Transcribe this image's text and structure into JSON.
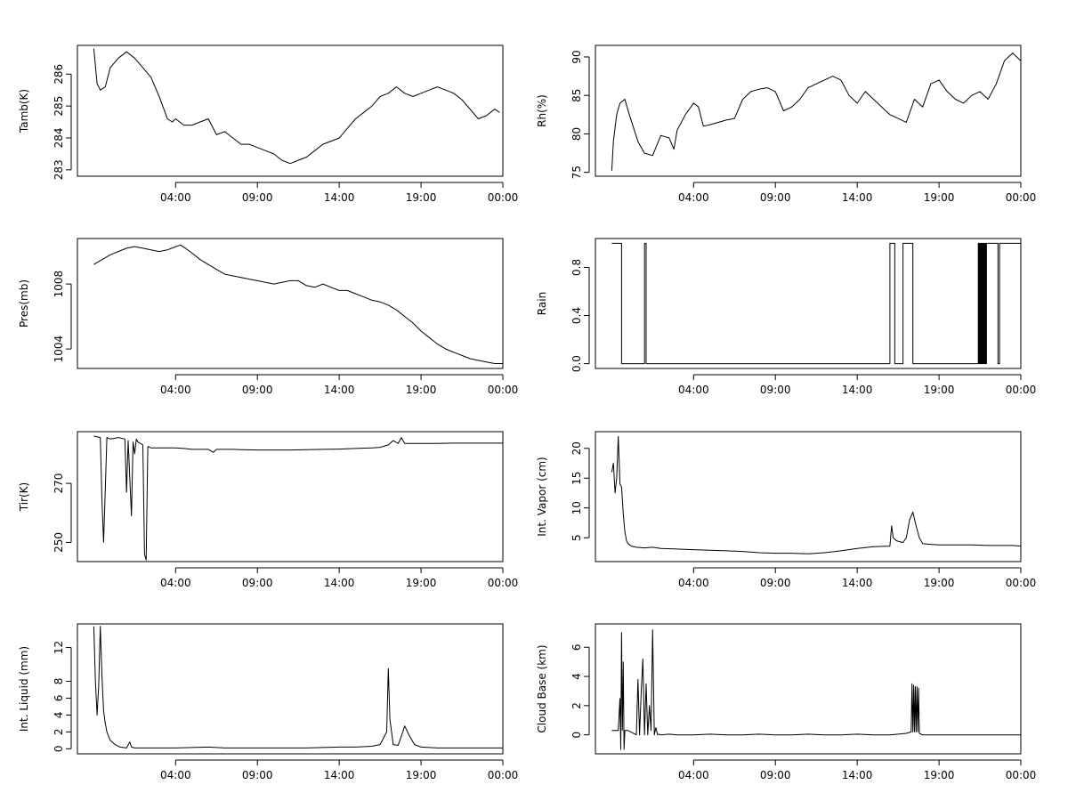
{
  "chart_data": [
    {
      "type": "line",
      "ylabel": "Tamb(K)",
      "xlim": [
        -2,
        24
      ],
      "ylim": [
        282.8,
        286.9
      ],
      "x_ticks": [
        4,
        9,
        14,
        19,
        24
      ],
      "x_tick_labels": [
        "04:00",
        "09:00",
        "14:00",
        "19:00",
        "00:00"
      ],
      "y_ticks": [
        283,
        284,
        285,
        286
      ],
      "y_tick_labels": [
        "283",
        "284",
        "285",
        "286"
      ],
      "series": [
        {
          "x": [
            -1,
            -0.8,
            -0.6,
            -0.3,
            0,
            0.5,
            1,
            1.5,
            2,
            2.5,
            3,
            3.5,
            3.8,
            4,
            4.5,
            5,
            5.5,
            6,
            6.5,
            7,
            7.5,
            8,
            8.5,
            9,
            9.5,
            10,
            10.5,
            11,
            11.5,
            12,
            12.5,
            13,
            13.5,
            14,
            14.5,
            15,
            15.5,
            16,
            16.5,
            17,
            17.5,
            18,
            18.5,
            19,
            19.5,
            20,
            20.5,
            21,
            21.5,
            22,
            22.5,
            23,
            23.5,
            23.8
          ],
          "y": [
            286.8,
            285.7,
            285.5,
            285.6,
            286.2,
            286.5,
            286.7,
            286.5,
            286.2,
            285.9,
            285.3,
            284.6,
            284.5,
            284.6,
            284.4,
            284.4,
            284.5,
            284.6,
            284.1,
            284.2,
            284.0,
            283.8,
            283.8,
            283.7,
            283.6,
            283.5,
            283.3,
            283.2,
            283.3,
            283.4,
            283.6,
            283.8,
            283.9,
            284.0,
            284.3,
            284.6,
            284.8,
            285.0,
            285.3,
            285.4,
            285.6,
            285.4,
            285.3,
            285.4,
            285.5,
            285.6,
            285.5,
            285.4,
            285.2,
            284.9,
            284.6,
            284.7,
            284.9,
            284.8
          ]
        }
      ]
    },
    {
      "type": "line",
      "ylabel": "Rh(%)",
      "xlim": [
        -2,
        24
      ],
      "ylim": [
        74.5,
        91.5
      ],
      "x_ticks": [
        4,
        9,
        14,
        19,
        24
      ],
      "x_tick_labels": [
        "04:00",
        "09:00",
        "14:00",
        "19:00",
        "00:00"
      ],
      "y_ticks": [
        75,
        80,
        85,
        90
      ],
      "y_tick_labels": [
        "75",
        "80",
        "85",
        "90"
      ],
      "series": [
        {
          "x": [
            -1,
            -0.9,
            -0.7,
            -0.5,
            -0.2,
            0,
            0.3,
            0.6,
            1,
            1.5,
            2,
            2.5,
            2.8,
            3,
            3.5,
            4,
            4.3,
            4.6,
            5,
            5.5,
            6,
            6.5,
            7,
            7.5,
            8,
            8.5,
            9,
            9.5,
            10,
            10.5,
            11,
            11.5,
            12,
            12.5,
            13,
            13.5,
            14,
            14.5,
            15,
            15.5,
            16,
            16.5,
            17,
            17.5,
            18,
            18.5,
            19,
            19.5,
            20,
            20.5,
            21,
            21.5,
            22,
            22.5,
            23,
            23.5,
            24
          ],
          "y": [
            75.2,
            79.0,
            82.5,
            84.0,
            84.5,
            83.0,
            81.0,
            79.0,
            77.5,
            77.2,
            79.8,
            79.5,
            78.0,
            80.5,
            82.5,
            84.0,
            83.5,
            81.0,
            81.2,
            81.5,
            81.8,
            82.0,
            84.5,
            85.5,
            85.8,
            86.0,
            85.5,
            83.0,
            83.5,
            84.5,
            86.0,
            86.5,
            87.0,
            87.5,
            87.0,
            85.0,
            84.0,
            85.5,
            84.5,
            83.5,
            82.5,
            82.0,
            81.5,
            84.5,
            83.5,
            86.5,
            87.0,
            85.5,
            84.5,
            84.0,
            85.0,
            85.5,
            84.5,
            86.5,
            89.5,
            90.5,
            89.5
          ]
        }
      ]
    },
    {
      "type": "line",
      "ylabel": "Pres(mb)",
      "xlim": [
        -2,
        24
      ],
      "ylim": [
        1002.8,
        1010.8
      ],
      "x_ticks": [
        4,
        9,
        14,
        19,
        24
      ],
      "x_tick_labels": [
        "04:00",
        "09:00",
        "14:00",
        "19:00",
        "00:00"
      ],
      "y_ticks": [
        1004,
        1008
      ],
      "y_tick_labels": [
        "1004",
        "1008"
      ],
      "series": [
        {
          "x": [
            -1,
            -0.5,
            0,
            0.5,
            1,
            1.5,
            2,
            2.5,
            3,
            3.5,
            4,
            4.3,
            4.6,
            5,
            5.5,
            6,
            6.5,
            7,
            7.5,
            8,
            8.5,
            9,
            9.5,
            10,
            10.5,
            11,
            11.5,
            12,
            12.5,
            13,
            13.5,
            14,
            14.5,
            15,
            15.5,
            16,
            16.5,
            17,
            17.5,
            18,
            18.5,
            19,
            19.5,
            20,
            20.5,
            21,
            21.5,
            22,
            22.5,
            23,
            23.5,
            24
          ],
          "y": [
            1009.2,
            1009.5,
            1009.8,
            1010.0,
            1010.2,
            1010.3,
            1010.2,
            1010.1,
            1010.0,
            1010.1,
            1010.3,
            1010.4,
            1010.2,
            1009.9,
            1009.5,
            1009.2,
            1008.9,
            1008.6,
            1008.5,
            1008.4,
            1008.3,
            1008.2,
            1008.1,
            1008.0,
            1008.1,
            1008.2,
            1008.2,
            1007.9,
            1007.8,
            1008.0,
            1007.8,
            1007.6,
            1007.6,
            1007.4,
            1007.2,
            1007.0,
            1006.9,
            1006.7,
            1006.4,
            1006.0,
            1005.6,
            1005.1,
            1004.7,
            1004.3,
            1004.0,
            1003.8,
            1003.6,
            1003.4,
            1003.3,
            1003.2,
            1003.1,
            1003.1
          ]
        }
      ]
    },
    {
      "type": "line",
      "ylabel": "Rain",
      "xlim": [
        -2,
        24
      ],
      "ylim": [
        -0.04,
        1.04
      ],
      "x_ticks": [
        4,
        9,
        14,
        19,
        24
      ],
      "x_tick_labels": [
        "04:00",
        "09:00",
        "14:00",
        "19:00",
        "00:00"
      ],
      "y_ticks": [
        0.0,
        0.4,
        0.8
      ],
      "y_tick_labels": [
        "0.0",
        "0.4",
        "0.8"
      ],
      "series": [
        {
          "x": [
            -1,
            -0.4,
            -0.4,
            1.0,
            1.0,
            1.1,
            1.1,
            16.0,
            16.0,
            16.3,
            16.3,
            16.8,
            16.8,
            17.4,
            17.4,
            21.4,
            21.4,
            21.45,
            21.45,
            21.5,
            21.5,
            21.55,
            21.55,
            21.6,
            21.6,
            21.65,
            21.65,
            21.7,
            21.7,
            21.75,
            21.75,
            21.8,
            21.8,
            21.85,
            21.85,
            21.9,
            21.9,
            22.6,
            22.6,
            22.7,
            22.7,
            24
          ],
          "y": [
            1,
            1,
            0,
            0,
            1,
            1,
            0,
            0,
            1,
            1,
            0,
            0,
            1,
            1,
            0,
            0,
            1,
            1,
            0,
            0,
            1,
            1,
            0,
            0,
            1,
            1,
            0,
            0,
            1,
            1,
            0,
            0,
            1,
            1,
            0,
            0,
            1,
            1,
            0,
            0,
            1,
            1
          ]
        }
      ]
    },
    {
      "type": "line",
      "ylabel": "Tir(K)",
      "xlim": [
        -2,
        24
      ],
      "ylim": [
        243.5,
        287.5
      ],
      "x_ticks": [
        4,
        9,
        14,
        19,
        24
      ],
      "x_tick_labels": [
        "04:00",
        "09:00",
        "14:00",
        "19:00",
        "00:00"
      ],
      "y_ticks": [
        250,
        270
      ],
      "y_tick_labels": [
        "250",
        "270"
      ],
      "series": [
        {
          "x": [
            -1,
            -0.6,
            -0.5,
            -0.4,
            -0.3,
            -0.2,
            0,
            0.5,
            0.9,
            1.0,
            1.1,
            1.3,
            1.4,
            1.5,
            1.6,
            1.7,
            2.0,
            2.1,
            2.2,
            2.3,
            2.5,
            3,
            3.5,
            4,
            4.5,
            5,
            5.5,
            6,
            6.3,
            6.5,
            7,
            7.5,
            8,
            9,
            10,
            11,
            12,
            13,
            14,
            15,
            16,
            16.5,
            17,
            17.3,
            17.6,
            17.8,
            18,
            19,
            20,
            21,
            22,
            23,
            24
          ],
          "y": [
            286.0,
            285.5,
            264.0,
            250.0,
            268.0,
            285.5,
            285.0,
            285.5,
            285.0,
            267.0,
            284.5,
            259.0,
            284.0,
            280.0,
            285.0,
            284.0,
            283.0,
            246.0,
            244.0,
            282.5,
            282.0,
            282.0,
            282.0,
            282.0,
            281.8,
            281.5,
            281.5,
            281.5,
            280.5,
            281.5,
            281.5,
            281.5,
            281.4,
            281.3,
            281.3,
            281.3,
            281.4,
            281.5,
            281.6,
            281.8,
            282.0,
            282.2,
            283.0,
            284.5,
            283.5,
            285.5,
            283.5,
            283.5,
            283.5,
            283.6,
            283.6,
            283.6,
            283.6
          ]
        }
      ]
    },
    {
      "type": "line",
      "ylabel": "Int. Vapor (cm)",
      "xlim": [
        -2,
        24
      ],
      "ylim": [
        1.0,
        22.8
      ],
      "x_ticks": [
        4,
        9,
        14,
        19,
        24
      ],
      "x_tick_labels": [
        "04:00",
        "09:00",
        "14:00",
        "19:00",
        "00:00"
      ],
      "y_ticks": [
        5,
        10,
        15,
        20
      ],
      "y_tick_labels": [
        "5",
        "10",
        "15",
        "20"
      ],
      "series": [
        {
          "x": [
            -1,
            -0.9,
            -0.8,
            -0.7,
            -0.6,
            -0.5,
            -0.4,
            -0.3,
            -0.2,
            -0.1,
            0,
            0.2,
            0.5,
            1,
            1.5,
            2,
            3,
            4,
            5,
            6,
            7,
            8,
            9,
            10,
            11,
            12,
            13,
            14,
            15,
            16,
            16.1,
            16.2,
            16.4,
            16.8,
            17,
            17.2,
            17.4,
            17.6,
            17.8,
            18,
            18.5,
            19,
            20,
            21,
            22,
            23,
            23.5,
            24
          ],
          "y": [
            16.0,
            17.5,
            12.5,
            15.0,
            22.0,
            14.0,
            13.5,
            9.0,
            6.0,
            4.5,
            4.0,
            3.6,
            3.4,
            3.3,
            3.4,
            3.2,
            3.1,
            3.0,
            2.9,
            2.8,
            2.7,
            2.5,
            2.4,
            2.4,
            2.3,
            2.5,
            2.8,
            3.2,
            3.5,
            3.6,
            7.0,
            5.0,
            4.5,
            4.2,
            5.0,
            8.0,
            9.3,
            7.0,
            5.0,
            4.0,
            3.9,
            3.8,
            3.8,
            3.8,
            3.7,
            3.7,
            3.7,
            3.6
          ]
        }
      ]
    },
    {
      "type": "line",
      "ylabel": "Int. Liquid (mm)",
      "xlim": [
        -2,
        24
      ],
      "ylim": [
        -0.6,
        14.8
      ],
      "x_ticks": [
        4,
        9,
        14,
        19,
        24
      ],
      "x_tick_labels": [
        "04:00",
        "09:00",
        "14:00",
        "19:00",
        "00:00"
      ],
      "y_ticks": [
        0,
        2,
        4,
        6,
        8,
        12
      ],
      "y_tick_labels": [
        "0",
        "2",
        "4",
        "6",
        "8",
        "12"
      ],
      "series": [
        {
          "x": [
            -1,
            -0.9,
            -0.8,
            -0.7,
            -0.6,
            -0.5,
            -0.4,
            -0.3,
            -0.2,
            0,
            0.3,
            0.6,
            1,
            1.2,
            1.3,
            1.5,
            2,
            3,
            4,
            5,
            6,
            7,
            8,
            9,
            10,
            11,
            12,
            13,
            14,
            15,
            16,
            16.5,
            16.9,
            17.0,
            17.1,
            17.3,
            17.6,
            17.8,
            18.0,
            18.3,
            18.6,
            19,
            20,
            21,
            22,
            23,
            24
          ],
          "y": [
            14.5,
            8.0,
            4.0,
            7.5,
            14.5,
            8.5,
            4.5,
            3.0,
            2.0,
            1.0,
            0.5,
            0.2,
            0.1,
            0.8,
            0.2,
            0.1,
            0.1,
            0.1,
            0.1,
            0.15,
            0.2,
            0.1,
            0.1,
            0.1,
            0.1,
            0.1,
            0.1,
            0.15,
            0.2,
            0.2,
            0.3,
            0.5,
            2.0,
            9.5,
            3.5,
            0.5,
            0.4,
            1.5,
            2.7,
            1.5,
            0.5,
            0.2,
            0.1,
            0.1,
            0.1,
            0.1,
            0.1
          ]
        }
      ]
    },
    {
      "type": "line",
      "ylabel": "Cloud Base (km)",
      "xlim": [
        -2,
        24
      ],
      "ylim": [
        -1.3,
        7.6
      ],
      "x_ticks": [
        4,
        9,
        14,
        19,
        24
      ],
      "x_tick_labels": [
        "04:00",
        "09:00",
        "14:00",
        "19:00",
        "00:00"
      ],
      "y_ticks": [
        0,
        2,
        4,
        6
      ],
      "y_tick_labels": [
        "0",
        "2",
        "4",
        "6"
      ],
      "series": [
        {
          "x": [
            -1,
            -0.6,
            -0.5,
            -0.45,
            -0.4,
            -0.35,
            -0.3,
            -0.25,
            -0.2,
            0,
            0.5,
            0.6,
            0.7,
            0.8,
            0.9,
            1.0,
            1.1,
            1.2,
            1.3,
            1.4,
            1.5,
            1.6,
            1.7,
            1.8,
            1.9,
            2.0,
            2.5,
            3,
            4,
            5,
            6,
            7,
            8,
            9,
            10,
            11,
            12,
            13,
            14,
            15,
            16,
            17,
            17.3,
            17.35,
            17.4,
            17.45,
            17.5,
            17.55,
            17.6,
            17.65,
            17.7,
            17.75,
            17.8,
            18,
            19,
            20,
            21,
            22,
            23,
            24
          ],
          "y": [
            0.3,
            0.3,
            2.5,
            -1.0,
            7.0,
            0.3,
            5.0,
            -1.0,
            0.3,
            0.3,
            0.0,
            3.8,
            0.0,
            3.0,
            5.2,
            0.0,
            3.5,
            0.0,
            2.0,
            0.3,
            7.2,
            0.0,
            0.5,
            0.0,
            0.05,
            0.0,
            0.05,
            0.0,
            0.0,
            0.05,
            0.0,
            0.0,
            0.05,
            0.0,
            0.0,
            0.05,
            0.0,
            0.0,
            0.05,
            0.0,
            0.0,
            0.1,
            0.2,
            3.5,
            0.2,
            3.4,
            0.2,
            3.3,
            0.2,
            3.3,
            0.2,
            3.2,
            0.1,
            0.0,
            0.0,
            0.0,
            0.0,
            0.0,
            0.0,
            0.0
          ]
        }
      ]
    }
  ]
}
